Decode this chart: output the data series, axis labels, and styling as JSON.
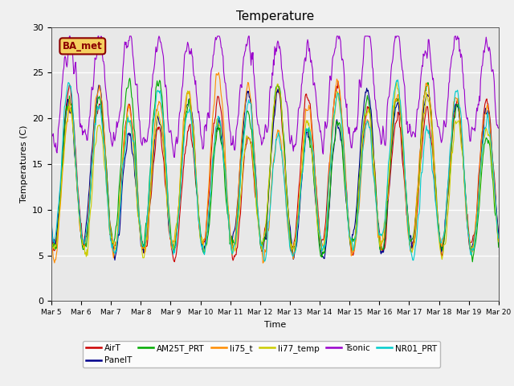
{
  "title": "Temperature",
  "ylabel": "Temperatures (C)",
  "xlabel": "Time",
  "ylim": [
    0,
    30
  ],
  "annotation": "BA_met",
  "background_color": "#e8e8e8",
  "series_order": [
    "AirT",
    "PanelT",
    "AM25T_PRT",
    "li75_t",
    "li77_temp",
    "Tsonic",
    "NR01_PRT"
  ],
  "series": {
    "AirT": {
      "color": "#cc0000",
      "lw": 0.8
    },
    "PanelT": {
      "color": "#00008b",
      "lw": 0.8
    },
    "AM25T_PRT": {
      "color": "#00aa00",
      "lw": 0.8
    },
    "li75_t": {
      "color": "#ff8c00",
      "lw": 0.8
    },
    "li77_temp": {
      "color": "#cccc00",
      "lw": 0.8
    },
    "Tsonic": {
      "color": "#9900cc",
      "lw": 0.8
    },
    "NR01_PRT": {
      "color": "#00cccc",
      "lw": 0.8
    }
  },
  "xtick_labels": [
    "Mar 5",
    "Mar 6",
    "Mar 7",
    "Mar 8",
    "Mar 9",
    "Mar 10",
    "Mar 11",
    "Mar 12",
    "Mar 13",
    "Mar 14",
    "Mar 15",
    "Mar 16",
    "Mar 17",
    "Mar 18",
    "Mar 19",
    "Mar 20"
  ],
  "ytick_labels": [
    "0",
    "5",
    "10",
    "15",
    "20",
    "25",
    "30"
  ],
  "grid_color": "#ffffff",
  "fig_facecolor": "#f0f0f0"
}
